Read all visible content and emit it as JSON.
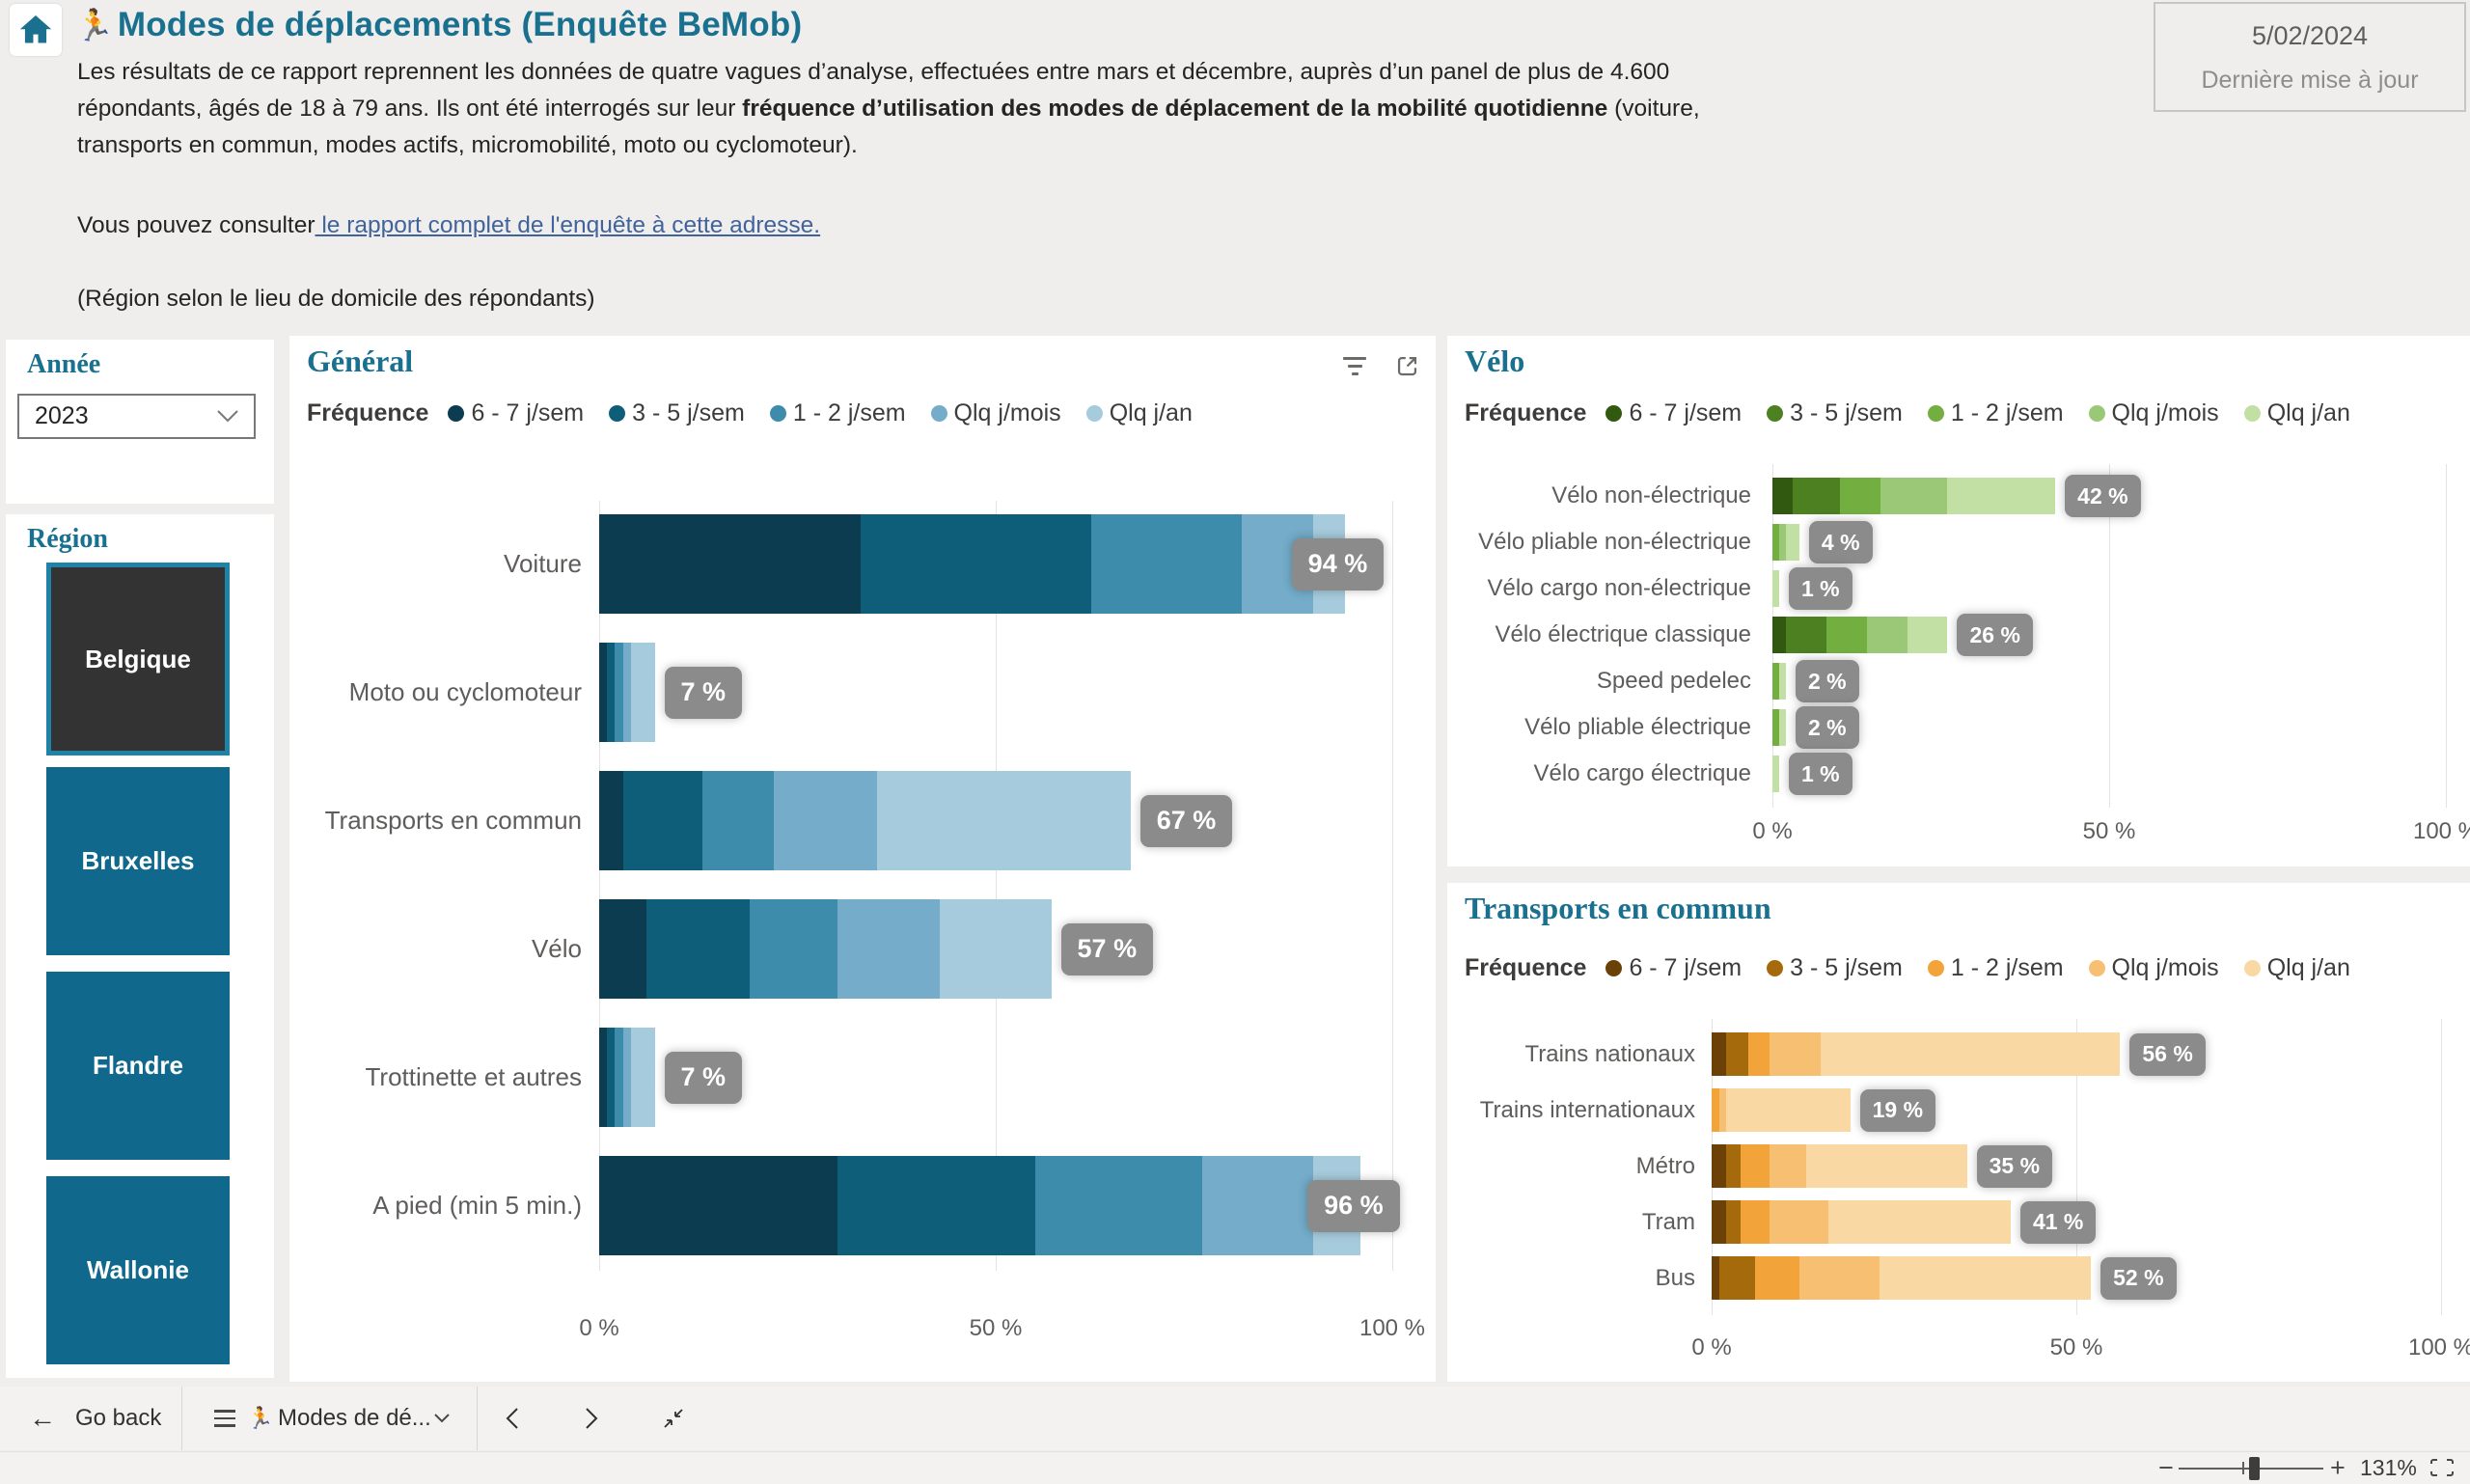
{
  "header": {
    "title_emoji": "🏃",
    "title": "Modes de déplacements (Enquête BeMob)",
    "intro_line1": "Les résultats de ce rapport reprennent les données de quatre vagues d’analyse, effectuées entre mars et décembre, auprès d’un panel de plus de 4.600",
    "intro_line2_pre": "répondants, âgés de 18 à 79 ans. Ils ont été interrogés sur leur ",
    "intro_line2_bold": "fréquence d’utilisation des modes de déplacement de la mobilité quotidienne",
    "intro_line2_post": " (voiture,",
    "intro_line3": "transports en commun, modes actifs, micromobilité, moto ou cyclomoteur).",
    "consult_pre": "Vous pouvez consulter",
    "consult_link": " le rapport complet de l'enquête à cette adresse.",
    "region_note": "(Région selon le lieu de domicile des répondants)"
  },
  "date_box": {
    "date": "5/02/2024",
    "caption": "Dernière mise à jour"
  },
  "filters": {
    "year_label": "Année",
    "year_value": "2023",
    "region_label": "Région",
    "regions": [
      {
        "label": "Belgique",
        "selected": true
      },
      {
        "label": "Bruxelles",
        "selected": false
      },
      {
        "label": "Flandre",
        "selected": false
      },
      {
        "label": "Wallonie",
        "selected": false
      }
    ]
  },
  "icons": {
    "back_arrow": "←",
    "minus": "−",
    "plus": "+"
  },
  "footer": {
    "go_back_label": "Go back",
    "tab_emoji": "🏃",
    "tab_label": "Modes de dé...",
    "zoom_level": "131%"
  },
  "chart_data": [
    {
      "id": "general",
      "type": "bar",
      "stacked": true,
      "orientation": "horizontal",
      "title": "Général",
      "legend_title": "Fréquence",
      "legend_position": "top",
      "xlim": [
        0,
        100
      ],
      "x_ticks": [
        "0 %",
        "50 %",
        "100 %"
      ],
      "x_tick_values": [
        0,
        50,
        100
      ],
      "categories": [
        "Voiture",
        "Moto ou cyclomoteur",
        "Transports en commun",
        "Vélo",
        "Trottinette et autres",
        "A pied (min 5 min.)"
      ],
      "series": [
        {
          "name": "6 - 7 j/sem",
          "color": "#0c3c50",
          "values": [
            33,
            1,
            3,
            6,
            1,
            30
          ]
        },
        {
          "name": "3 - 5 j/sem",
          "color": "#0f5e79",
          "values": [
            29,
            1,
            10,
            13,
            1,
            25
          ]
        },
        {
          "name": "1 - 2  j/sem",
          "color": "#3e8cab",
          "values": [
            19,
            1,
            9,
            11,
            1,
            21
          ]
        },
        {
          "name": "Qlq j/mois",
          "color": "#74acc9",
          "values": [
            9,
            1,
            13,
            13,
            1,
            14
          ]
        },
        {
          "name": "Qlq j/an",
          "color": "#a6cbdc",
          "values": [
            4,
            3,
            32,
            14,
            3,
            6
          ]
        }
      ],
      "bar_labels": [
        "94 %",
        "7 %",
        "67 %",
        "57 %",
        "7 %",
        "96 %"
      ]
    },
    {
      "id": "velo",
      "type": "bar",
      "stacked": true,
      "orientation": "horizontal",
      "title": "Vélo",
      "legend_title": "Fréquence",
      "legend_position": "top",
      "xlim": [
        0,
        100
      ],
      "x_ticks": [
        "0 %",
        "50 %",
        "100 %"
      ],
      "x_tick_values": [
        0,
        50,
        100
      ],
      "categories": [
        "Vélo non-électrique",
        "Vélo pliable non-électrique",
        "Vélo cargo non-électrique",
        "Vélo électrique classique",
        "Speed pedelec",
        "Vélo pliable électrique",
        "Vélo cargo électrique"
      ],
      "series": [
        {
          "name": "6 - 7 j/sem",
          "color": "#31590f",
          "values": [
            3,
            0,
            0,
            2,
            0,
            0,
            0
          ]
        },
        {
          "name": "3 - 5 j/sem",
          "color": "#4c8020",
          "values": [
            7,
            0,
            0,
            6,
            0,
            0,
            0
          ]
        },
        {
          "name": "1 - 2  j/sem",
          "color": "#73ae41",
          "values": [
            6,
            1,
            0,
            6,
            1,
            1,
            0
          ]
        },
        {
          "name": "Qlq j/mois",
          "color": "#9bc876",
          "values": [
            10,
            1,
            0,
            6,
            0,
            0,
            0
          ]
        },
        {
          "name": "Qlq j/an",
          "color": "#c3e0a4",
          "values": [
            16,
            2,
            1,
            6,
            1,
            1,
            1
          ]
        }
      ],
      "bar_labels": [
        "42 %",
        "4 %",
        "1 %",
        "26 %",
        "2 %",
        "2 %",
        "1 %"
      ]
    },
    {
      "id": "tc",
      "type": "bar",
      "stacked": true,
      "orientation": "horizontal",
      "title": "Transports en commun",
      "legend_title": "Fréquence",
      "legend_position": "top",
      "xlim": [
        0,
        100
      ],
      "x_ticks": [
        "0 %",
        "50 %",
        "100 %"
      ],
      "x_tick_values": [
        0,
        50,
        100
      ],
      "categories": [
        "Trains nationaux",
        "Trains internationaux",
        "Métro",
        "Tram",
        "Bus"
      ],
      "series": [
        {
          "name": "6 - 7 j/sem",
          "color": "#6b4108",
          "values": [
            2,
            0,
            2,
            2,
            1
          ]
        },
        {
          "name": "3 - 5 j/sem",
          "color": "#a56a0c",
          "values": [
            3,
            0,
            2,
            2,
            5
          ]
        },
        {
          "name": "1 - 2  j/sem",
          "color": "#f2a33a",
          "values": [
            3,
            1,
            4,
            4,
            6
          ]
        },
        {
          "name": "Qlq j/mois",
          "color": "#f6bf72",
          "values": [
            7,
            1,
            5,
            8,
            11
          ]
        },
        {
          "name": "Qlq j/an",
          "color": "#fad8a4",
          "values": [
            41,
            17,
            22,
            25,
            29
          ]
        }
      ],
      "bar_labels": [
        "56 %",
        "19 %",
        "35 %",
        "41 %",
        "52 %"
      ]
    }
  ]
}
